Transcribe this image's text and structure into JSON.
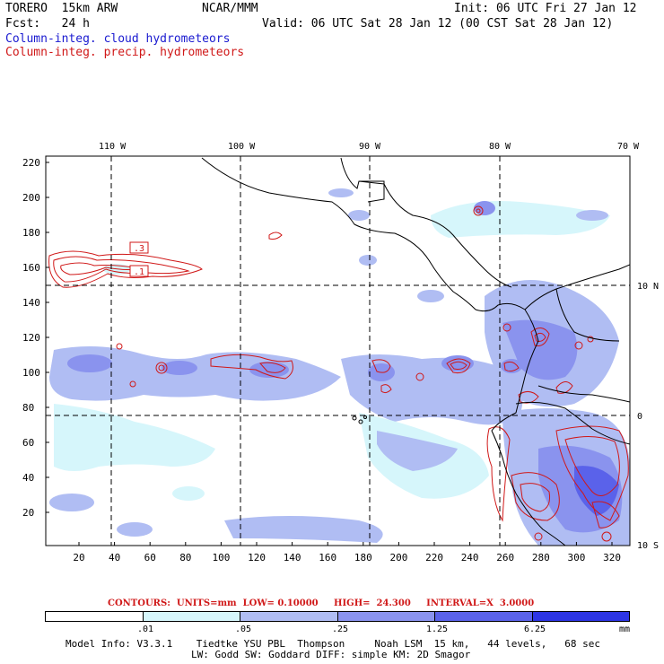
{
  "header": {
    "model": "TORERO  15km ARW",
    "org": "NCAR/MMM",
    "init": "Init: 06 UTC Fri 27 Jan 12",
    "fcst": "Fcst:   24 h",
    "valid": "Valid: 06 UTC Sat 28 Jan 12 (00 CST Sat 28 Jan 12)",
    "field1": "Column-integ. cloud hydrometeors",
    "field2": "Column-integ. precip. hydrometeors"
  },
  "colors": {
    "blue_text": "#1a1ad0",
    "red_text": "#d01818",
    "contour": "#d01818"
  },
  "map": {
    "lon_labels": [
      "110 W",
      "100 W",
      "90 W",
      "80 W",
      "70 W"
    ],
    "lat_labels": [
      "10 N",
      "0",
      "10 S"
    ],
    "y_ticks": [
      "220",
      "200",
      "180",
      "160",
      "140",
      "120",
      "100",
      "80",
      "60",
      "40",
      "20"
    ],
    "x_ticks": [
      "20",
      "40",
      "60",
      "80",
      "100",
      "120",
      "140",
      "160",
      "180",
      "200",
      "220",
      "240",
      "260",
      "280",
      "300",
      "320"
    ],
    "contour_labels": [
      ".3",
      ".1"
    ]
  },
  "contours_info": "CONTOURS:  UNITS=mm  LOW= 0.10000     HIGH=  24.300     INTERVAL=X  3.0000",
  "legend": {
    "labels": [
      ".01",
      ".05",
      ".25",
      "1.25",
      "6.25"
    ],
    "unit": "mm",
    "colors": [
      "#ffffff",
      "#d6f6fb",
      "#b0bdf3",
      "#8a93ee",
      "#5a62ea",
      "#2d35e4"
    ]
  },
  "footer": {
    "line1": "Model Info: V3.3.1    Tiedtke YSU PBL  Thompson     Noah LSM  15 km,   44 levels,   68 sec",
    "line2": "LW: Godd SW: Goddard DIFF: simple KM: 2D Smagor"
  }
}
